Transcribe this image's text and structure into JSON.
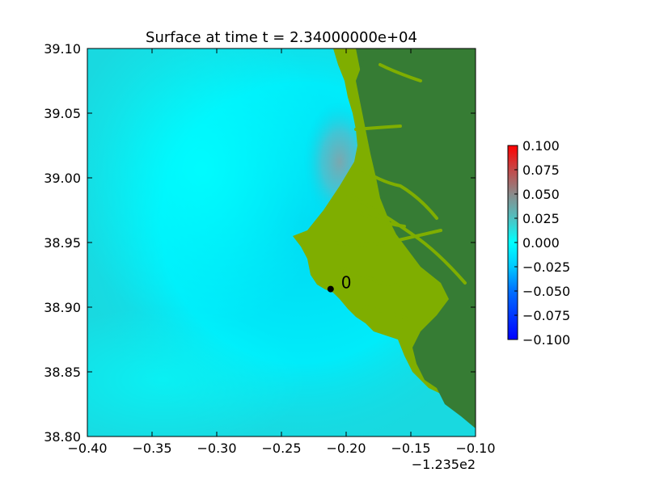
{
  "chart_data": {
    "type": "heatmap",
    "title": "Surface at time t = 2.34000000e+04",
    "xlabel": "",
    "ylabel": "",
    "xlim": [
      -0.4,
      -0.1
    ],
    "ylim": [
      38.8,
      39.1
    ],
    "x_ticks": [
      -0.4,
      -0.35,
      -0.3,
      -0.25,
      -0.2,
      -0.15,
      -0.1
    ],
    "x_tick_labels": [
      "−0.40",
      "−0.35",
      "−0.30",
      "−0.25",
      "−0.20",
      "−0.15",
      "−0.10"
    ],
    "x_offset_label": "−1.235e2",
    "y_ticks": [
      38.8,
      38.85,
      38.9,
      38.95,
      39.0,
      39.05,
      39.1
    ],
    "y_tick_labels": [
      "38.80",
      "38.85",
      "38.90",
      "38.95",
      "39.00",
      "39.05",
      "39.10"
    ],
    "grid": false,
    "colorbar": {
      "min": -0.1,
      "max": 0.1,
      "ticks": [
        -0.1,
        -0.075,
        -0.05,
        -0.025,
        0.0,
        0.025,
        0.05,
        0.075,
        0.1
      ],
      "tick_labels": [
        "−0.100",
        "−0.075",
        "−0.050",
        "−0.025",
        "0.000",
        "0.025",
        "0.050",
        "0.075",
        "0.100"
      ],
      "colors": [
        [
          -0.1,
          "#0000ff"
        ],
        [
          -0.05,
          "#0070ff"
        ],
        [
          -0.025,
          "#00c8ff"
        ],
        [
          0.0,
          "#00ffff"
        ],
        [
          0.025,
          "#4fc1c1"
        ],
        [
          0.05,
          "#8a8a8a"
        ],
        [
          0.075,
          "#c44848"
        ],
        [
          0.1,
          "#ff0000"
        ]
      ]
    },
    "land_colors": {
      "lowland": "#7fae00",
      "highland": "#367c34",
      "ocean_base": "#19d9e0"
    },
    "gauges": [
      {
        "label": "0",
        "x": -0.212,
        "y": 38.914
      }
    ]
  }
}
